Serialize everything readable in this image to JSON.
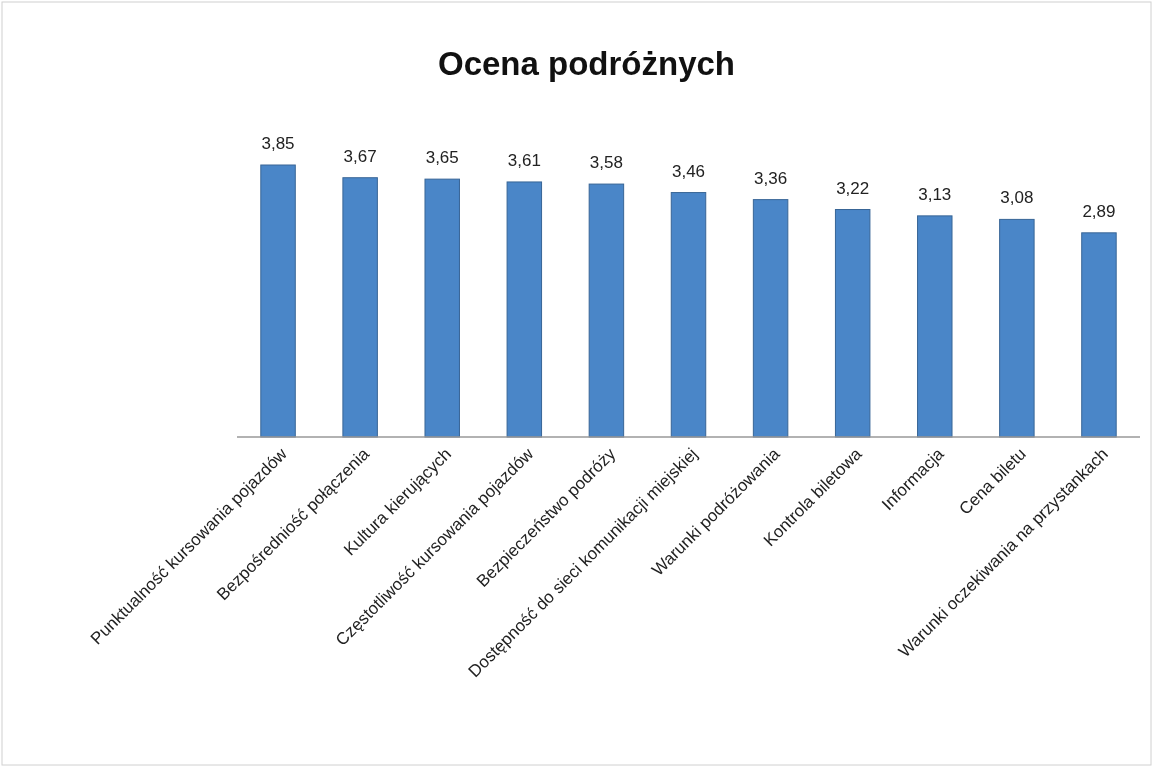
{
  "chart_data": {
    "type": "bar",
    "title": "Ocena podróżnych",
    "categories": [
      "Punktualność kursowania pojazdów",
      "Bezpośredniość połączenia",
      "Kultura kierujących",
      "Częstotliwość kursowania pojazdów",
      "Bezpieczeństwo podróży",
      "Dostępność do sieci komunikacji miejskiej",
      "Warunki podróżowania",
      "Kontrola biletowa",
      "Informacja",
      "Cena biletu",
      "Warunki oczekiwania na przystankach"
    ],
    "values": [
      3.85,
      3.67,
      3.65,
      3.61,
      3.58,
      3.46,
      3.36,
      3.22,
      3.13,
      3.08,
      2.89
    ],
    "value_labels": [
      "3,85",
      "3,67",
      "3,65",
      "3,61",
      "3,58",
      "3,46",
      "3,36",
      "3,22",
      "3,13",
      "3,08",
      "2,89"
    ],
    "color": "#4a86c8",
    "tick_labels": "x"
  }
}
